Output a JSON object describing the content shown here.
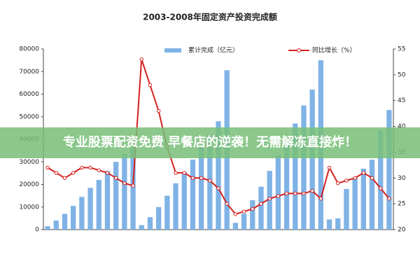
{
  "chart_data": {
    "type": "bar_line",
    "title": "2003-2008年固定资产投资完成额",
    "categories": [
      null,
      null,
      null,
      null,
      null,
      null,
      null,
      null,
      null,
      null,
      null,
      null,
      null,
      null,
      null,
      null,
      null,
      null,
      null,
      null,
      null,
      null,
      null,
      null,
      null,
      null,
      null,
      null,
      null,
      null,
      null,
      null,
      null,
      null,
      null,
      null,
      null,
      null,
      null,
      null,
      null
    ],
    "series": [
      {
        "name": "累计完成（亿元）",
        "color": "#7fb3e6",
        "type": "bar",
        "values": [
          1500,
          4000,
          7000,
          10500,
          14500,
          18500,
          22000,
          26000,
          30000,
          33500,
          36500,
          2000,
          5500,
          10000,
          15000,
          20500,
          25500,
          31000,
          36500,
          42000,
          48000,
          70600,
          3000,
          7000,
          13000,
          19000,
          26000,
          33000,
          40000,
          47000,
          55000,
          62000,
          75000,
          4500,
          5000,
          18000,
          23000,
          27000,
          31000,
          44000,
          53000
        ]
      },
      {
        "name": "同比增长（%）",
        "color": "#d62020",
        "type": "line",
        "axis": "y2",
        "values": [
          32,
          31,
          30,
          31,
          32,
          32,
          31.5,
          31,
          30,
          29,
          28.5,
          53,
          48,
          43,
          36,
          31,
          31,
          30,
          30,
          29.5,
          28,
          25,
          23,
          23.5,
          24,
          25,
          26,
          26.5,
          27,
          27,
          27,
          27.5,
          26,
          32,
          29,
          29.5,
          30,
          31,
          30,
          28,
          26
        ]
      }
    ],
    "ylim": [
      0,
      80000
    ],
    "yticks": [
      0,
      10000,
      20000,
      30000,
      40000,
      50000,
      60000,
      70000,
      80000
    ],
    "y2lim": [
      20,
      55
    ],
    "y2ticks": [
      20,
      25,
      30,
      35,
      40,
      45,
      50,
      55
    ]
  },
  "banner": "专业股票配资免费 早餐店的逆袭！无需解冻直接炸！"
}
